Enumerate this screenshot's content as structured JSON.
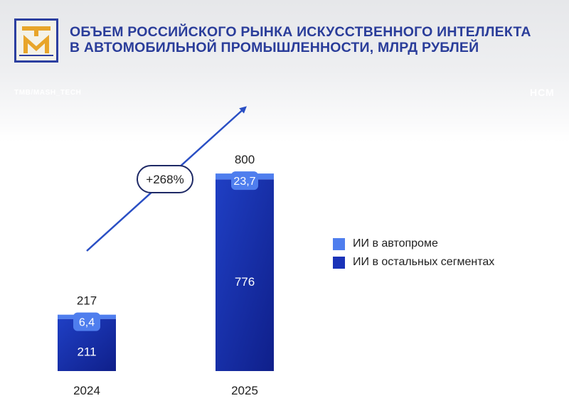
{
  "header": {
    "title_line1": "ОБЪЕМ РОССИЙСКОГО РЫНКА ИСКУССТВЕННОГО ИНТЕЛЛЕКТА",
    "title_line2": "В АВТОМОБИЛЬНОЙ ПРОМЫШЛЕННОСТИ, МЛРД РУБЛЕЙ",
    "brand_left": "TMB/MASH_TECH",
    "brand_right": "НСМ"
  },
  "colors": {
    "title": "#2a3d9a",
    "auto_segment": "#4f7eee",
    "other_segments": "#1a33b8",
    "arrow": "#2a4fc4"
  },
  "chart_data": {
    "type": "bar",
    "stacked": true,
    "categories": [
      "2024",
      "2025"
    ],
    "series": [
      {
        "name": "ИИ в остальных сегментах",
        "values": [
          211,
          776
        ],
        "labels": [
          "211",
          "776"
        ]
      },
      {
        "name": "ИИ в автопроме",
        "values": [
          6.4,
          23.7
        ],
        "labels": [
          "6,4",
          "23,7"
        ]
      }
    ],
    "totals": [
      217,
      800
    ],
    "growth_label": "+268%",
    "legend": [
      "ИИ в автопроме",
      "ИИ в остальных сегментах"
    ],
    "legend_position": "right",
    "grid": false,
    "ylim": [
      0,
      800
    ]
  }
}
